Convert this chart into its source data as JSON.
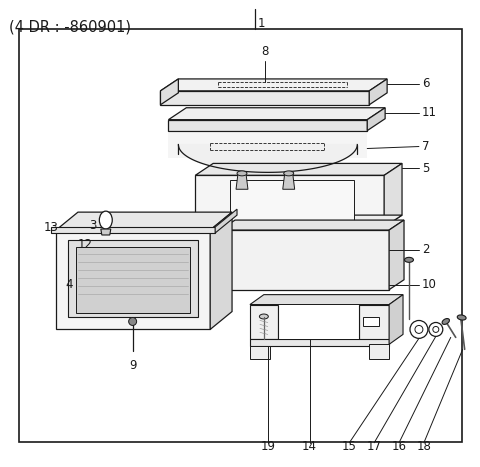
{
  "title": "(4 DR : -860901)",
  "bg_color": "#ffffff",
  "line_color": "#1a1a1a",
  "text_color": "#1a1a1a",
  "title_fontsize": 10.5,
  "label_fontsize": 8.5
}
